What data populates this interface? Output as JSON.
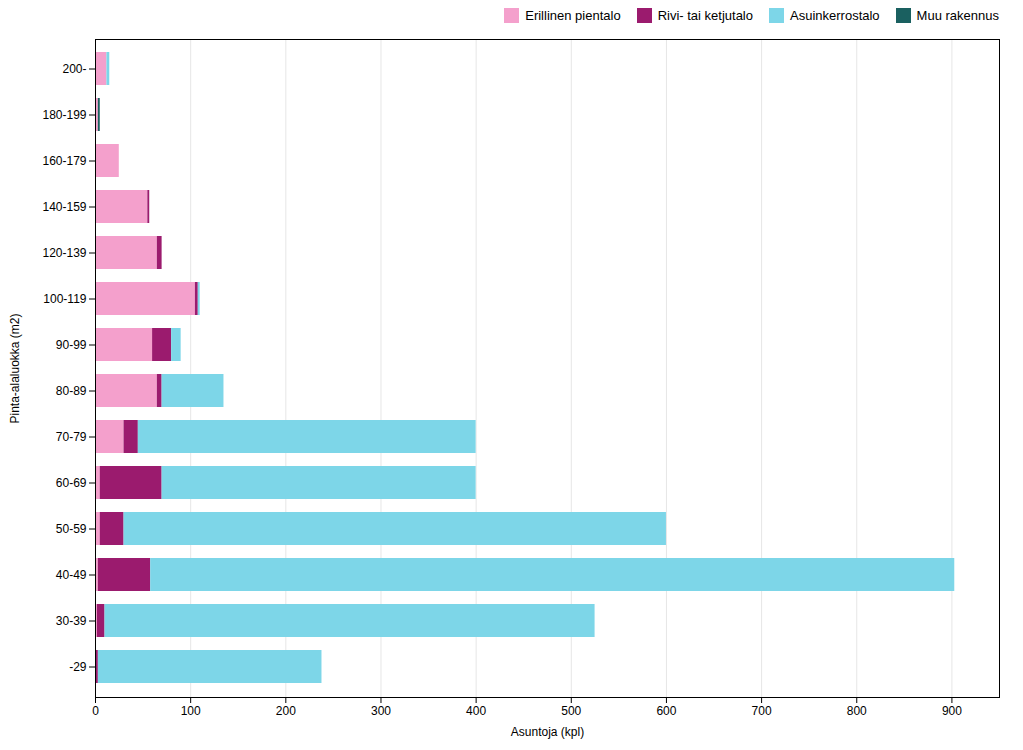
{
  "chart_data": {
    "type": "bar",
    "orientation": "horizontal",
    "stacked": true,
    "categories": [
      "200-",
      "180-199",
      "160-179",
      "140-159",
      "120-139",
      "100-119",
      "90-99",
      "80-89",
      "70-79",
      "60-69",
      "50-59",
      "40-49",
      "30-39",
      "-29"
    ],
    "series": [
      {
        "name": "Erillinen pientalo",
        "color": "#f4a0cc",
        "values": [
          12,
          3,
          25,
          55,
          65,
          105,
          60,
          65,
          30,
          5,
          5,
          3,
          2,
          0
        ]
      },
      {
        "name": "Rivi- tai ketjutalo",
        "color": "#9b1b6e",
        "values": [
          0,
          0,
          0,
          2,
          5,
          3,
          20,
          5,
          15,
          65,
          25,
          55,
          8,
          3
        ]
      },
      {
        "name": "Asuinkerrostalo",
        "color": "#7dd6e8",
        "values": [
          3,
          0,
          0,
          0,
          0,
          2,
          10,
          65,
          355,
          330,
          570,
          845,
          515,
          235
        ]
      },
      {
        "name": "Muu rakennus",
        "color": "#1a6060",
        "values": [
          0,
          2,
          0,
          0,
          0,
          0,
          0,
          0,
          0,
          0,
          0,
          0,
          0,
          0
        ]
      }
    ],
    "xlabel": "Asuntoja (kpl)",
    "ylabel": "Pinta-alaluokka (m2)",
    "xlim": [
      0,
      950
    ],
    "xticks": [
      0,
      100,
      200,
      300,
      400,
      500,
      600,
      700,
      800,
      900
    ],
    "grid": true,
    "legend": "upper right"
  }
}
